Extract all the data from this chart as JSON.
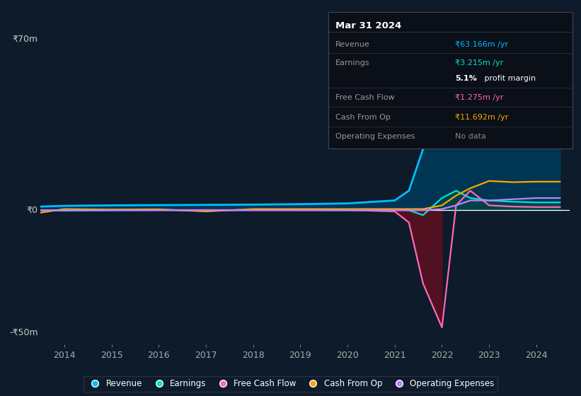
{
  "background_color": "#0d1b2a",
  "plot_bg_color": "#0d1b2a",
  "ylabel_top": "₹70m",
  "ylabel_zero": "₹0",
  "ylabel_bottom": "-₹50m",
  "ylim": [
    -55,
    78
  ],
  "xlim": [
    2013.5,
    2024.7
  ],
  "xticks": [
    2014,
    2015,
    2016,
    2017,
    2018,
    2019,
    2020,
    2021,
    2022,
    2023,
    2024
  ],
  "info_box": {
    "title": "Mar 31 2024",
    "rows": [
      {
        "label": "Revenue",
        "value": "₹63.166m /yr",
        "color": "#00bfff"
      },
      {
        "label": "Earnings",
        "value": "₹3.215m /yr",
        "color": "#00e5cc"
      },
      {
        "label": "",
        "value": "5.1% profit margin",
        "color": "#ffffff",
        "bold_prefix": "5.1%"
      },
      {
        "label": "Free Cash Flow",
        "value": "₹1.275m /yr",
        "color": "#ff69b4"
      },
      {
        "label": "Cash From Op",
        "value": "₹11.692m /yr",
        "color": "#ffa500"
      },
      {
        "label": "Operating Expenses",
        "value": "No data",
        "color": "#888888"
      }
    ]
  },
  "legend": [
    {
      "label": "Revenue",
      "color": "#00bfff"
    },
    {
      "label": "Earnings",
      "color": "#00e5cc"
    },
    {
      "label": "Free Cash Flow",
      "color": "#ff69b4"
    },
    {
      "label": "Cash From Op",
      "color": "#ffa500"
    },
    {
      "label": "Operating Expenses",
      "color": "#bf80ff"
    }
  ],
  "revenue_color": "#00bfff",
  "earnings_color": "#00e5cc",
  "fcf_color": "#ff69b4",
  "cashop_color": "#ffa500",
  "opex_color": "#bf80ff",
  "revenue_fill_color": "#003a5c",
  "earnings_fill_pos_color": "#004a44",
  "earnings_fill_neg_color": "#5a1020",
  "zero_line_color": "#ffffff",
  "grid_color": "#1e2d40",
  "years": [
    2013.5,
    2014,
    2015,
    2016,
    2017,
    2018,
    2019,
    2020,
    2021,
    2021.3,
    2021.6,
    2022.0,
    2022.3,
    2022.6,
    2023.0,
    2023.5,
    2024.0,
    2024.5
  ],
  "revenue": [
    1.5,
    1.8,
    2.0,
    2.1,
    2.2,
    2.3,
    2.5,
    2.8,
    4.0,
    8.0,
    25.0,
    45.0,
    55.0,
    60.0,
    60.0,
    62.0,
    63.0,
    63.2
  ],
  "earnings": [
    0.0,
    -0.2,
    0.0,
    0.1,
    0.0,
    0.1,
    0.1,
    0.0,
    0.2,
    0.0,
    -2.0,
    5.0,
    8.0,
    5.0,
    4.0,
    3.5,
    3.2,
    3.2
  ],
  "fcf": [
    0.0,
    0.1,
    0.1,
    0.1,
    0.1,
    0.1,
    0.1,
    0.1,
    -0.5,
    -5.0,
    -30.0,
    -48.0,
    2.0,
    8.0,
    2.0,
    1.5,
    1.3,
    1.3
  ],
  "cashop": [
    -1.0,
    0.5,
    0.3,
    0.4,
    -0.5,
    0.5,
    0.5,
    0.5,
    0.5,
    0.5,
    0.5,
    2.0,
    6.0,
    9.0,
    12.0,
    11.5,
    11.7,
    11.7
  ],
  "opex": [
    0.0,
    0.0,
    0.0,
    0.0,
    0.0,
    0.0,
    0.0,
    0.0,
    0.0,
    0.0,
    0.0,
    0.5,
    2.0,
    4.0,
    4.0,
    4.5,
    5.0,
    5.0
  ]
}
